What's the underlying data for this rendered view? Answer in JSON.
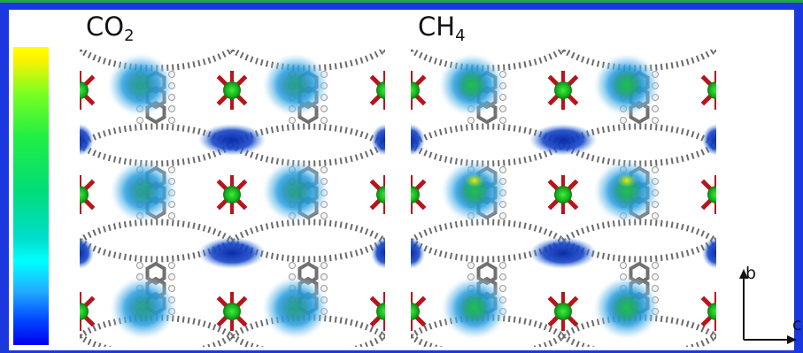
{
  "panels": [
    {
      "label_main": "CO",
      "label_sub": "2"
    },
    {
      "label_main": "CH",
      "label_sub": "4"
    }
  ],
  "axes": {
    "b": "b",
    "c": "c"
  },
  "colors": {
    "frame_border": "#1a37e0",
    "top_stripe": "#22a64a",
    "colorbar_top": "#ffff00",
    "colorbar_bottom": "#0000ee"
  },
  "icons": {
    "colorbar": "density-colorbar",
    "panel_image": "mof-density-map",
    "axes": "axis-arrows-icon"
  }
}
